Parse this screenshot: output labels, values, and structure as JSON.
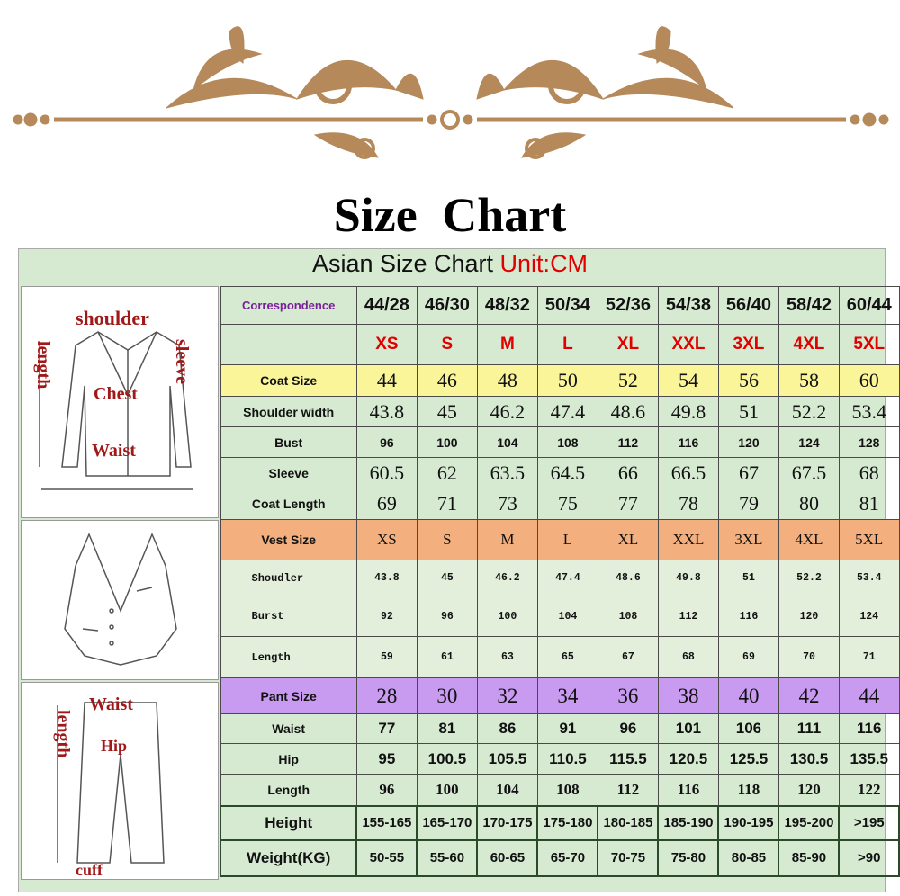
{
  "title": "Size Chart",
  "subtitle": {
    "text": "Asian Size Chart",
    "unit": "Unit:CM"
  },
  "colors": {
    "ornament": "#b5895a",
    "panel": "#d6ead2",
    "coat_row": "#fbf59a",
    "vest_row": "#f3b07e",
    "pant_row": "#c89af0",
    "size_red": "#e00000"
  },
  "illustrations": {
    "jacket": {
      "labels": [
        "shoulder",
        "length",
        "sleeve",
        "Chest",
        "Waist"
      ]
    },
    "vest": {
      "labels": []
    },
    "pants": {
      "labels": [
        "Waist",
        "length",
        "Hip",
        "cuff"
      ]
    }
  },
  "table": {
    "rows": [
      {
        "label": "Correspondence",
        "values": [
          "44/28",
          "46/30",
          "48/32",
          "50/34",
          "52/36",
          "54/38",
          "56/40",
          "58/42",
          "60/44"
        ]
      },
      {
        "label": "",
        "values": [
          "XS",
          "S",
          "M",
          "L",
          "XL",
          "XXL",
          "3XL",
          "4XL",
          "5XL"
        ]
      },
      {
        "label": "Coat Size",
        "values": [
          "44",
          "46",
          "48",
          "50",
          "52",
          "54",
          "56",
          "58",
          "60"
        ]
      },
      {
        "label": "Shoulder width",
        "values": [
          "43.8",
          "45",
          "46.2",
          "47.4",
          "48.6",
          "49.8",
          "51",
          "52.2",
          "53.4"
        ]
      },
      {
        "label": "Bust",
        "values": [
          "96",
          "100",
          "104",
          "108",
          "112",
          "116",
          "120",
          "124",
          "128"
        ]
      },
      {
        "label": "Sleeve",
        "values": [
          "60.5",
          "62",
          "63.5",
          "64.5",
          "66",
          "66.5",
          "67",
          "67.5",
          "68"
        ]
      },
      {
        "label": "Coat Length",
        "values": [
          "69",
          "71",
          "73",
          "75",
          "77",
          "78",
          "79",
          "80",
          "81"
        ]
      },
      {
        "label": "Vest Size",
        "values": [
          "XS",
          "S",
          "M",
          "L",
          "XL",
          "XXL",
          "3XL",
          "4XL",
          "5XL"
        ]
      },
      {
        "label": "Shoudler",
        "values": [
          "43.8",
          "45",
          "46.2",
          "47.4",
          "48.6",
          "49.8",
          "51",
          "52.2",
          "53.4"
        ]
      },
      {
        "label": "Burst",
        "values": [
          "92",
          "96",
          "100",
          "104",
          "108",
          "112",
          "116",
          "120",
          "124"
        ]
      },
      {
        "label": "Length",
        "values": [
          "59",
          "61",
          "63",
          "65",
          "67",
          "68",
          "69",
          "70",
          "71"
        ]
      },
      {
        "label": "Pant Size",
        "values": [
          "28",
          "30",
          "32",
          "34",
          "36",
          "38",
          "40",
          "42",
          "44"
        ]
      },
      {
        "label": "Waist",
        "values": [
          "77",
          "81",
          "86",
          "91",
          "96",
          "101",
          "106",
          "111",
          "116"
        ]
      },
      {
        "label": "Hip",
        "values": [
          "95",
          "100.5",
          "105.5",
          "110.5",
          "115.5",
          "120.5",
          "125.5",
          "130.5",
          "135.5"
        ]
      },
      {
        "label": "Length",
        "values": [
          "96",
          "100",
          "104",
          "108",
          "112",
          "116",
          "118",
          "120",
          "122"
        ]
      },
      {
        "label": "Height",
        "values": [
          "155-165",
          "165-170",
          "170-175",
          "175-180",
          "180-185",
          "185-190",
          "190-195",
          "195-200",
          ">195"
        ]
      },
      {
        "label": "Weight(KG)",
        "values": [
          "50-55",
          "55-60",
          "60-65",
          "65-70",
          "70-75",
          "75-80",
          "80-85",
          "85-90",
          ">90"
        ]
      }
    ]
  }
}
